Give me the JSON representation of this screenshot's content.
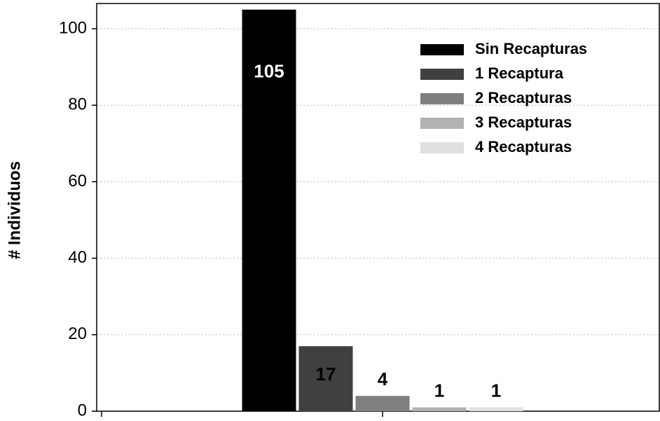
{
  "chart_data": {
    "type": "bar",
    "y_label": "# Individuos",
    "categories": [
      null
    ],
    "series": [
      {
        "name": "Sin Recapturas",
        "color": "#000000",
        "values": [
          105
        ]
      },
      {
        "name": "1 Recaptura",
        "color": "#404040",
        "values": [
          17
        ]
      },
      {
        "name": "2 Recapturas",
        "color": "#7f7f7f",
        "values": [
          4
        ]
      },
      {
        "name": "3 Recapturas",
        "color": "#b2b2b2",
        "values": [
          1
        ]
      },
      {
        "name": "4 Recapturas",
        "color": "#e0e0e0",
        "values": [
          1
        ]
      }
    ],
    "ylim": [
      0,
      106.6
    ],
    "yticks": [
      0,
      20,
      40,
      60,
      80,
      100
    ],
    "grid": true,
    "legend": "upper right"
  }
}
